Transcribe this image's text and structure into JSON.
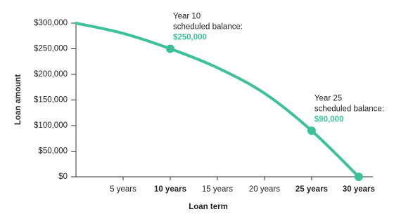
{
  "chart_data": {
    "type": "line",
    "x_label": "Loan term",
    "y_label": "Loan amount",
    "x": [
      0,
      5,
      10,
      15,
      20,
      25,
      30
    ],
    "series": [
      {
        "name": "Scheduled balance",
        "color": "#3cc19b",
        "values": [
          300000,
          280000,
          250000,
          213000,
          163000,
          90000,
          0
        ]
      }
    ],
    "markers": {
      "x": [
        10,
        25,
        30
      ],
      "values": [
        250000,
        90000,
        0
      ],
      "value_labels": [
        "$250,000",
        "$90,000",
        null
      ],
      "label_lines": [
        [
          "Year 10",
          "scheduled balance:"
        ],
        [
          "Year 25",
          "scheduled balance:"
        ],
        null
      ]
    },
    "xlim": [
      0,
      31.5
    ],
    "ylim": [
      0,
      300000
    ],
    "xticks": [
      {
        "value": 5,
        "label": "5 years"
      },
      {
        "value": 10,
        "label": "10 years"
      },
      {
        "value": 15,
        "label": "15 years"
      },
      {
        "value": 20,
        "label": "20 years"
      },
      {
        "value": 25,
        "label": "25 years"
      },
      {
        "value": 30,
        "label": "30 years"
      }
    ],
    "emphasized_xticks": [
      10,
      25,
      30
    ],
    "yticks": [
      {
        "value": 0,
        "label": "$0"
      },
      {
        "value": 50000,
        "label": "$50,000"
      },
      {
        "value": 100000,
        "label": "$100,000"
      },
      {
        "value": 150000,
        "label": "$150,000"
      },
      {
        "value": 200000,
        "label": "$200,000"
      },
      {
        "value": 250000,
        "label": "$250,000"
      },
      {
        "value": 300000,
        "label": "$300,000"
      }
    ]
  }
}
